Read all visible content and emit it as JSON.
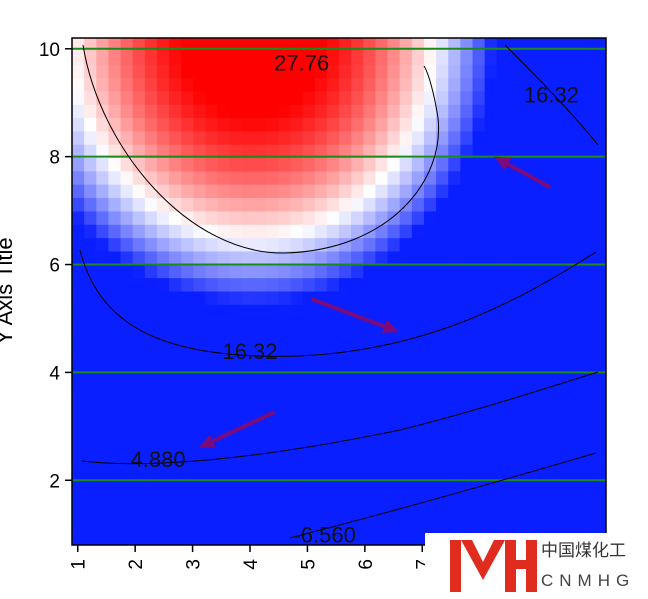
{
  "chart_data": {
    "type": "heatmap",
    "title": "",
    "xlabel": "",
    "ylabel": "Y Axis Title",
    "xlim": [
      0.9,
      10.2
    ],
    "ylim": [
      0.8,
      10.2
    ],
    "x_ticks": [
      "1",
      "2",
      "3",
      "4",
      "5",
      "6",
      "7"
    ],
    "y_ticks": [
      "2",
      "4",
      "6",
      "8",
      "10"
    ],
    "color_scale": {
      "low": "#0a1fff",
      "mid": "#ffffff",
      "high": "#ff0000",
      "min": -12,
      "mid_value": 10,
      "max": 34
    },
    "field": {
      "peak_x": 4.1,
      "peak_y": 10.0,
      "peak_value": 33.5
    },
    "grid_lines_y": [
      2,
      4,
      6,
      8,
      10
    ],
    "grid_color": "#1a8a1a",
    "contours": [
      {
        "label": "27.76",
        "label_x": 4.9,
        "label_y": 9.6
      },
      {
        "label": "16.32",
        "label_x": 4.0,
        "label_y": 4.25
      },
      {
        "label": "16.32",
        "label_x": 9.25,
        "label_y": 9.0
      },
      {
        "label": "4.880",
        "label_x": 2.4,
        "label_y": 2.25
      },
      {
        "label": "-6.560",
        "label_x": 5.3,
        "label_y": 0.85
      }
    ],
    "arrows": [
      {
        "from": [
          9.2,
          7.45
        ],
        "to": [
          8.25,
          8.0
        ]
      },
      {
        "from": [
          5.1,
          5.35
        ],
        "to": [
          6.6,
          4.75
        ]
      },
      {
        "from": [
          4.4,
          3.25
        ],
        "to": [
          3.1,
          2.6
        ]
      }
    ],
    "arrow_color": "#7b0a7b"
  },
  "watermark": {
    "name_cn": "中国煤化工",
    "name_en": "CNMHG"
  }
}
